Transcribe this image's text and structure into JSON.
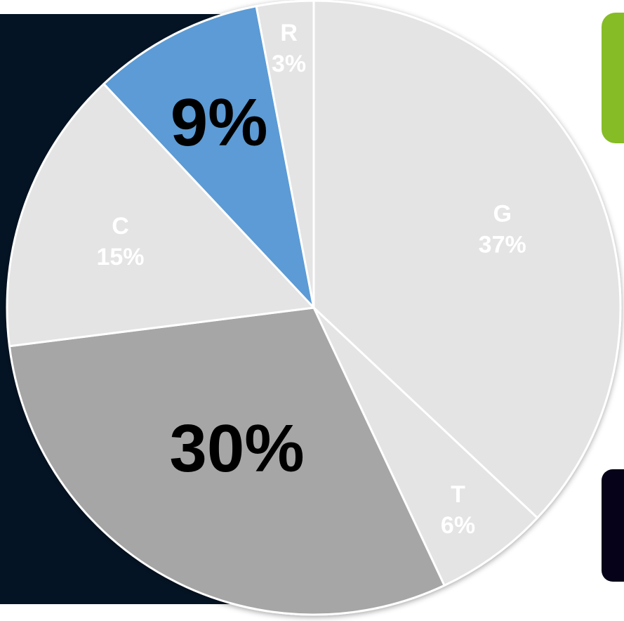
{
  "chart_data": {
    "type": "pie",
    "title": "",
    "unit": "%",
    "slices": [
      {
        "label": "G",
        "value": 37,
        "value_text": "37%",
        "color": "#e4e4e4",
        "label_style": "small"
      },
      {
        "label": "T",
        "value": 6,
        "value_text": "6%",
        "color": "#e4e4e4",
        "label_style": "small"
      },
      {
        "label": "",
        "value": 30,
        "value_text": "30%",
        "color": "#a6a6a6",
        "label_style": "big"
      },
      {
        "label": "C",
        "value": 15,
        "value_text": "15%",
        "color": "#e4e4e4",
        "label_style": "small"
      },
      {
        "label": "",
        "value": 9,
        "value_text": "9%",
        "color": "#5b9bd5",
        "label_style": "big"
      },
      {
        "label": "R",
        "value": 3,
        "value_text": "3%",
        "color": "#e4e4e4",
        "label_style": "small"
      }
    ],
    "start_angle": "12 o'clock",
    "direction": "clockwise",
    "legend": "none",
    "slice_border_color": "#ffffff"
  },
  "colors": {
    "dark_panel": "#041425",
    "accent_green": "#86bc25",
    "accent_navy": "#050219"
  }
}
